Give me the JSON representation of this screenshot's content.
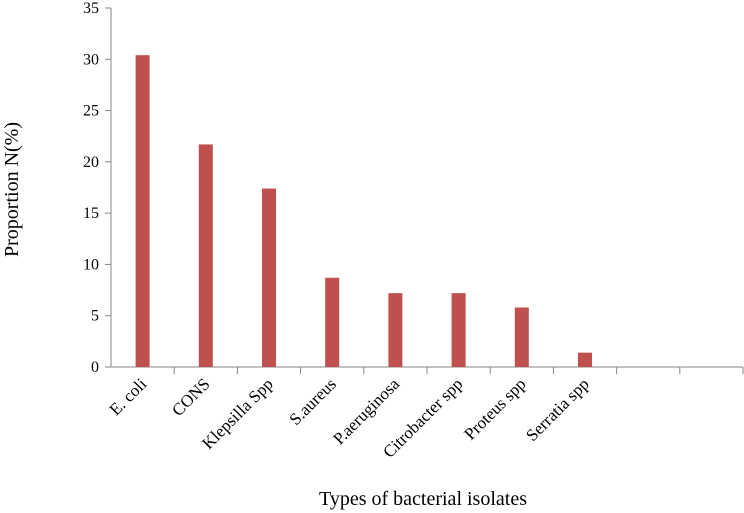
{
  "chart_data": {
    "type": "bar",
    "title": "",
    "xlabel": "Types of bacterial isolates",
    "ylabel": "Proportion N(%)",
    "categories": [
      "E. coli",
      "CONS",
      "Klepsilla Spp",
      "S.aureus",
      "P.aeruginosa",
      "Citrobacter spp",
      "Proteus spp",
      "Serratia spp",
      "",
      ""
    ],
    "values": [
      30.4,
      21.7,
      17.4,
      8.7,
      7.2,
      7.2,
      5.8,
      1.4,
      null,
      null
    ],
    "ylim": [
      0,
      35
    ],
    "yticks": [
      0,
      5,
      10,
      15,
      20,
      25,
      30,
      35
    ],
    "grid": false,
    "legend": "none",
    "bar_color": "#c0504d",
    "axis_color": "#868686"
  }
}
